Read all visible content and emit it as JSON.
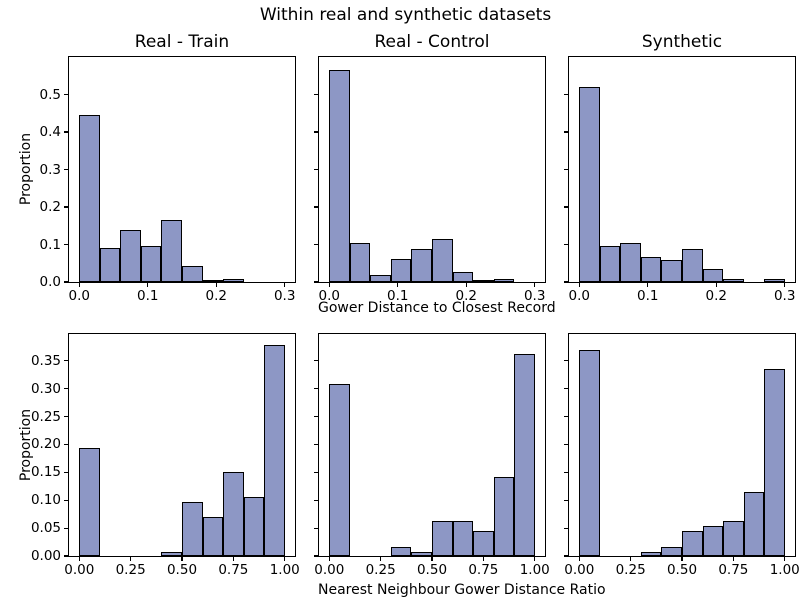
{
  "figure": {
    "suptitle": "Within real and synthetic datasets",
    "ylabel": "Proportion",
    "xlabel_top": "Gower Distance to Closest Record",
    "xlabel_bottom": "Nearest Neighbour Gower Distance Ratio"
  },
  "colors": {
    "bar_fill": "#8d97c5",
    "bar_edge": "#000000",
    "axis": "#000000",
    "background": "#ffffff"
  },
  "chart_data": [
    {
      "type": "histogram",
      "title": "Real - Train",
      "position": "top-left",
      "bin_start": 0.0,
      "bin_width": 0.03,
      "values": [
        0.445,
        0.091,
        0.139,
        0.097,
        0.165,
        0.044,
        0.006,
        0.008,
        0,
        0
      ],
      "xlim": [
        -0.015,
        0.315
      ],
      "ylim": [
        0,
        0.6
      ],
      "xticks": [
        0.0,
        0.1,
        0.2,
        0.3
      ],
      "xtick_labels": [
        "0.0",
        "0.1",
        "0.2",
        "0.3"
      ],
      "yticks": [
        0.0,
        0.1,
        0.2,
        0.3,
        0.4,
        0.5
      ],
      "ytick_labels": [
        "0.0",
        "0.1",
        "0.2",
        "0.3",
        "0.4",
        "0.5"
      ],
      "show_ytick_labels": true,
      "grid": false,
      "legend": false
    },
    {
      "type": "histogram",
      "title": "Real - Control",
      "position": "top-middle",
      "bin_start": 0.0,
      "bin_width": 0.03,
      "values": [
        0.565,
        0.104,
        0.018,
        0.062,
        0.088,
        0.115,
        0.027,
        0.006,
        0.007,
        0
      ],
      "xlim": [
        -0.015,
        0.315
      ],
      "ylim": [
        0,
        0.6
      ],
      "xticks": [
        0.0,
        0.1,
        0.2,
        0.3
      ],
      "xtick_labels": [
        "0.0",
        "0.1",
        "0.2",
        "0.3"
      ],
      "yticks": [
        0.0,
        0.1,
        0.2,
        0.3,
        0.4,
        0.5
      ],
      "ytick_labels": [
        "0.0",
        "0.1",
        "0.2",
        "0.3",
        "0.4",
        "0.5"
      ],
      "show_ytick_labels": false,
      "grid": false,
      "legend": false
    },
    {
      "type": "histogram",
      "title": "Synthetic",
      "position": "top-right",
      "bin_start": 0.0,
      "bin_width": 0.03,
      "values": [
        0.52,
        0.097,
        0.104,
        0.066,
        0.058,
        0.087,
        0.034,
        0.008,
        0,
        0.007
      ],
      "xlim": [
        -0.015,
        0.315
      ],
      "ylim": [
        0,
        0.6
      ],
      "xticks": [
        0.0,
        0.1,
        0.2,
        0.3
      ],
      "xtick_labels": [
        "0.0",
        "0.1",
        "0.2",
        "0.3"
      ],
      "yticks": [
        0.0,
        0.1,
        0.2,
        0.3,
        0.4,
        0.5
      ],
      "ytick_labels": [
        "0.0",
        "0.1",
        "0.2",
        "0.3",
        "0.4",
        "0.5"
      ],
      "show_ytick_labels": false,
      "grid": false,
      "legend": false
    },
    {
      "type": "histogram",
      "title": "",
      "position": "bottom-left",
      "bin_start": 0.0,
      "bin_width": 0.1,
      "values": [
        0.193,
        0,
        0,
        0,
        0.008,
        0.097,
        0.07,
        0.15,
        0.105,
        0.378
      ],
      "xlim": [
        -0.05,
        1.05
      ],
      "ylim": [
        0,
        0.398
      ],
      "xticks": [
        0.0,
        0.25,
        0.5,
        0.75,
        1.0
      ],
      "xtick_labels": [
        "0.00",
        "0.25",
        "0.50",
        "0.75",
        "1.00"
      ],
      "yticks": [
        0.0,
        0.05,
        0.1,
        0.15,
        0.2,
        0.25,
        0.3,
        0.35
      ],
      "ytick_labels": [
        "0.00",
        "0.05",
        "0.10",
        "0.15",
        "0.20",
        "0.25",
        "0.30",
        "0.35"
      ],
      "show_ytick_labels": true,
      "grid": false,
      "legend": false
    },
    {
      "type": "histogram",
      "title": "",
      "position": "bottom-middle",
      "bin_start": 0.0,
      "bin_width": 0.1,
      "values": [
        0.308,
        0,
        0,
        0.017,
        0.008,
        0.062,
        0.062,
        0.045,
        0.141,
        0.362
      ],
      "xlim": [
        -0.05,
        1.05
      ],
      "ylim": [
        0,
        0.398
      ],
      "xticks": [
        0.0,
        0.25,
        0.5,
        0.75,
        1.0
      ],
      "xtick_labels": [
        "0.00",
        "0.25",
        "0.50",
        "0.75",
        "1.00"
      ],
      "yticks": [
        0.0,
        0.05,
        0.1,
        0.15,
        0.2,
        0.25,
        0.3,
        0.35
      ],
      "ytick_labels": [
        "0.00",
        "0.05",
        "0.10",
        "0.15",
        "0.20",
        "0.25",
        "0.30",
        "0.35"
      ],
      "show_ytick_labels": false,
      "grid": false,
      "legend": false
    },
    {
      "type": "histogram",
      "title": "",
      "position": "bottom-right",
      "bin_start": 0.0,
      "bin_width": 0.1,
      "values": [
        0.37,
        0,
        0,
        0.008,
        0.017,
        0.045,
        0.053,
        0.062,
        0.115,
        0.335
      ],
      "xlim": [
        -0.05,
        1.05
      ],
      "ylim": [
        0,
        0.398
      ],
      "xticks": [
        0.0,
        0.25,
        0.5,
        0.75,
        1.0
      ],
      "xtick_labels": [
        "0.00",
        "0.25",
        "0.50",
        "0.75",
        "1.00"
      ],
      "yticks": [
        0.0,
        0.05,
        0.1,
        0.15,
        0.2,
        0.25,
        0.3,
        0.35
      ],
      "ytick_labels": [
        "0.00",
        "0.05",
        "0.10",
        "0.15",
        "0.20",
        "0.25",
        "0.30",
        "0.35"
      ],
      "show_ytick_labels": false,
      "grid": false,
      "legend": false
    }
  ]
}
